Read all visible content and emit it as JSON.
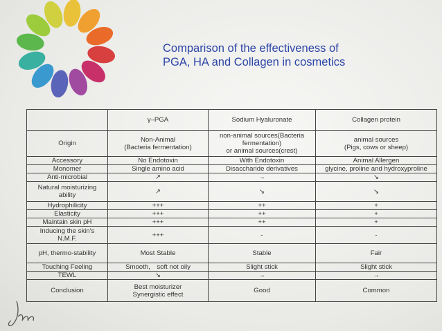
{
  "title": [
    "Comparison of the effectiveness of",
    "PGA, HA and Collagen in cosmetics"
  ],
  "table": {
    "header": [
      "γ–PGA",
      "Sodium Hyaluronate",
      "Collagen protein"
    ],
    "rows": [
      [
        "Origin",
        [
          "Non-Animal",
          "(Bacteria fermentation)"
        ],
        [
          "non-animal sources(Bacteria",
          "fermentation)",
          "or animal sources(crest)"
        ],
        [
          "animal sources",
          "(Pigs, cows or sheep)"
        ]
      ],
      [
        "Accessory",
        "No Endotoxin",
        "With Endotoxin",
        "Animal Allergen"
      ],
      [
        "Monomer",
        "Single amino acid",
        "Disaccharide derivatives",
        "glycine, proline and hydroxyproline"
      ],
      [
        "Anti-microbial",
        "↗",
        "→",
        "↘"
      ],
      [
        [
          "Natural moisturizing",
          "ability"
        ],
        "↗",
        "↘",
        "↘"
      ],
      [
        "Hydrophilicity",
        "+++",
        "++",
        "+"
      ],
      [
        "Elasticity",
        "+++",
        "++",
        "+"
      ],
      [
        "Maintain skin pH",
        "+++",
        "++",
        "+"
      ],
      [
        [
          "Inducing the skin's",
          "N.M.F."
        ],
        "+++",
        "-",
        "-"
      ],
      [
        "pH, thermo-stability",
        "Most Stable",
        "Stable",
        "Fair"
      ],
      [
        "Touching Feeling",
        "Smooth,　soft not oily",
        "Slight stick",
        "Slight stick"
      ],
      [
        "TEWL",
        "↘",
        "→",
        "→"
      ],
      [
        "Conclusion",
        [
          "Best moisturizer",
          "Synergistic effect"
        ],
        "Good",
        "Common"
      ]
    ]
  }
}
